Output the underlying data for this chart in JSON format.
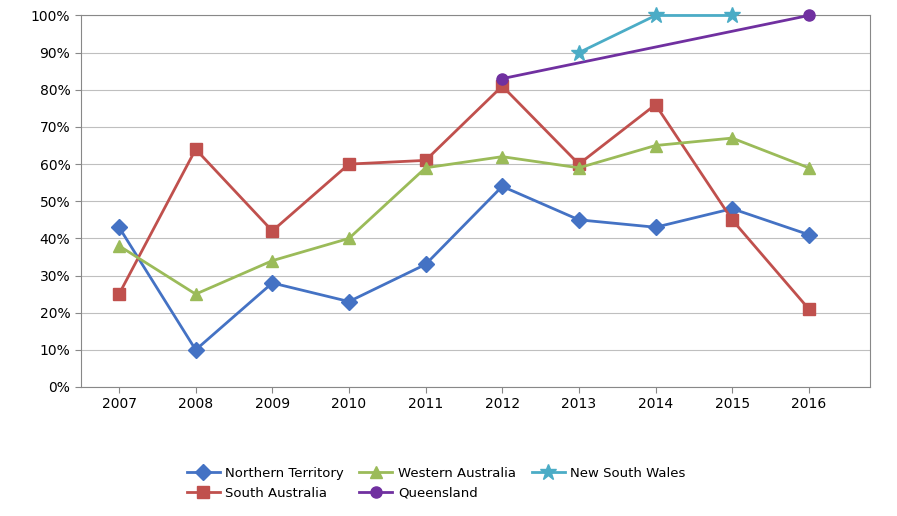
{
  "years_all": [
    2007,
    2008,
    2009,
    2010,
    2011,
    2012,
    2013,
    2014,
    2015,
    2016
  ],
  "NT": {
    "label": "Northern Territory",
    "color": "#4472C4",
    "marker": "D",
    "years": [
      2007,
      2008,
      2009,
      2010,
      2011,
      2012,
      2013,
      2014,
      2015,
      2016
    ],
    "values": [
      0.43,
      0.1,
      0.28,
      0.23,
      0.33,
      0.54,
      0.45,
      0.43,
      0.48,
      0.41
    ]
  },
  "SA": {
    "label": "South Australia",
    "color": "#C0504D",
    "marker": "s",
    "years": [
      2007,
      2008,
      2009,
      2010,
      2011,
      2012,
      2013,
      2014,
      2015,
      2016
    ],
    "values": [
      0.25,
      0.64,
      0.42,
      0.6,
      0.61,
      0.81,
      0.6,
      0.76,
      0.45,
      0.21
    ]
  },
  "WA": {
    "label": "Western Australia",
    "color": "#9BBB59",
    "marker": "^",
    "years": [
      2007,
      2008,
      2009,
      2010,
      2011,
      2012,
      2013,
      2014,
      2015,
      2016
    ],
    "values": [
      0.38,
      0.25,
      0.34,
      0.4,
      0.59,
      0.62,
      0.59,
      0.65,
      0.67,
      0.59
    ]
  },
  "QLD": {
    "label": "Queensland",
    "color": "#7030A0",
    "marker": "o",
    "years": [
      2012,
      2016
    ],
    "values": [
      0.83,
      1.0
    ]
  },
  "NSW": {
    "label": "New South Wales",
    "color": "#4BACC6",
    "marker": "*",
    "years": [
      2013,
      2014,
      2015
    ],
    "values": [
      0.9,
      1.0,
      1.0
    ]
  },
  "ylim": [
    0,
    1.0
  ],
  "yticks": [
    0.0,
    0.1,
    0.2,
    0.3,
    0.4,
    0.5,
    0.6,
    0.7,
    0.8,
    0.9,
    1.0
  ],
  "background_color": "#FFFFFF",
  "grid_color": "#BFBFBF",
  "legend_fontsize": 9.5,
  "axis_fontsize": 10,
  "linewidth": 2.0,
  "markersize": 8
}
